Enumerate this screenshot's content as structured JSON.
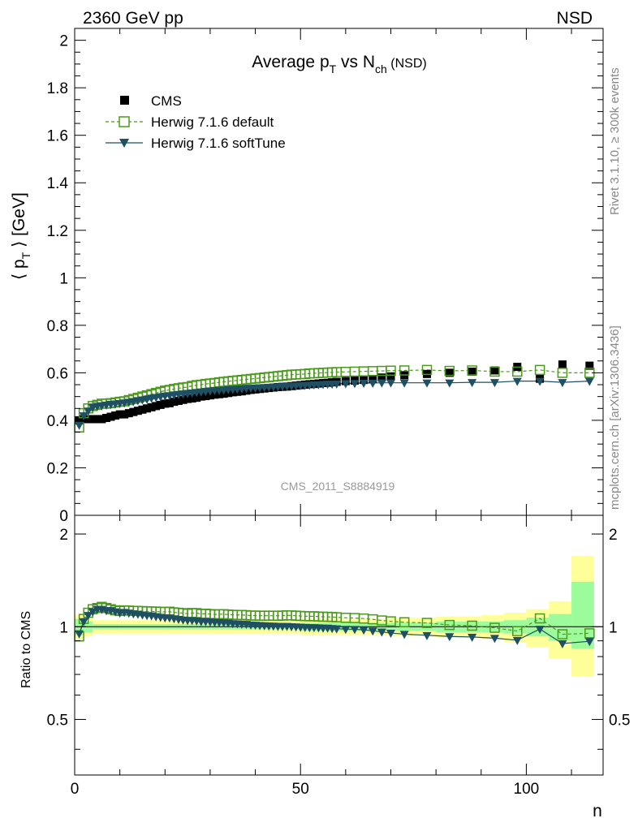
{
  "header": {
    "energy_label": "2360 GeV pp",
    "process_label": "NSD"
  },
  "side_labels": {
    "rivet": "Rivet 3.1.10, ≥ 300k events",
    "mcplots": "mcplots.cern.ch [arXiv:1306.3436]"
  },
  "chart_data": [
    {
      "type": "scatter",
      "title": "Average p_T vs N_ch (NSD)",
      "title_parts": {
        "a": "Average p",
        "a_sub": "T",
        "b": " vs N",
        "b_sub": "ch",
        "c": " (NSD)"
      },
      "ylabel": "⟨ p_T ⟩ [GeV]",
      "ylabel_parts": {
        "a": "⟨ p",
        "sub": "T",
        "b": " ⟩ [GeV]"
      },
      "xlabel": "n",
      "xlim": [
        0,
        117
      ],
      "ylim": [
        0,
        2.05
      ],
      "yticks": [
        "0",
        "0.2",
        "0.4",
        "0.6",
        "0.8",
        "1",
        "1.2",
        "1.4",
        "1.6",
        "1.8",
        "2"
      ],
      "xticks": [
        "0",
        "50",
        "100"
      ],
      "watermark": "CMS_2011_S8884919",
      "legend_position": "top-left",
      "series": [
        {
          "name": "CMS",
          "color": "#000000",
          "marker": "square-filled",
          "x": [
            1,
            2,
            3,
            4,
            5,
            6,
            7,
            8,
            9,
            10,
            11,
            12,
            13,
            14,
            15,
            16,
            17,
            18,
            19,
            20,
            21,
            22,
            23,
            24,
            25,
            26,
            27,
            28,
            29,
            30,
            31,
            32,
            33,
            34,
            35,
            36,
            37,
            38,
            39,
            40,
            41,
            42,
            43,
            44,
            45,
            46,
            47,
            48,
            49,
            50,
            51,
            52,
            53,
            54,
            55,
            56,
            57,
            58,
            60,
            62,
            64,
            66,
            68,
            70,
            73,
            78,
            83,
            88,
            93,
            98,
            103,
            108,
            114
          ],
          "y": [
            0.4,
            0.405,
            0.405,
            0.405,
            0.405,
            0.405,
            0.41,
            0.415,
            0.42,
            0.425,
            0.425,
            0.43,
            0.435,
            0.44,
            0.445,
            0.45,
            0.455,
            0.46,
            0.465,
            0.47,
            0.472,
            0.478,
            0.482,
            0.486,
            0.49,
            0.492,
            0.495,
            0.5,
            0.502,
            0.505,
            0.508,
            0.51,
            0.512,
            0.515,
            0.518,
            0.52,
            0.522,
            0.525,
            0.528,
            0.53,
            0.532,
            0.534,
            0.536,
            0.538,
            0.54,
            0.541,
            0.542,
            0.544,
            0.546,
            0.548,
            0.55,
            0.552,
            0.553,
            0.555,
            0.557,
            0.558,
            0.56,
            0.562,
            0.565,
            0.567,
            0.57,
            0.574,
            0.58,
            0.585,
            0.59,
            0.595,
            0.6,
            0.605,
            0.61,
            0.625,
            0.575,
            0.635,
            0.63
          ]
        },
        {
          "name": "Herwig 7.1.6 default",
          "color": "#4a9a1a",
          "marker": "square-open",
          "line": "dashed",
          "x": [
            1,
            2,
            3,
            4,
            5,
            6,
            7,
            8,
            9,
            10,
            11,
            12,
            13,
            14,
            15,
            16,
            17,
            18,
            19,
            20,
            21,
            22,
            23,
            24,
            25,
            26,
            27,
            28,
            29,
            30,
            31,
            32,
            33,
            34,
            35,
            36,
            37,
            38,
            39,
            40,
            41,
            42,
            43,
            44,
            45,
            46,
            47,
            48,
            49,
            50,
            51,
            52,
            53,
            54,
            55,
            56,
            57,
            58,
            60,
            62,
            64,
            66,
            68,
            70,
            73,
            78,
            83,
            88,
            93,
            98,
            103,
            108,
            114
          ],
          "y": [
            0.37,
            0.43,
            0.45,
            0.46,
            0.465,
            0.47,
            0.47,
            0.472,
            0.475,
            0.478,
            0.48,
            0.485,
            0.49,
            0.495,
            0.5,
            0.505,
            0.51,
            0.515,
            0.52,
            0.525,
            0.528,
            0.532,
            0.535,
            0.538,
            0.54,
            0.545,
            0.548,
            0.55,
            0.553,
            0.555,
            0.557,
            0.56,
            0.562,
            0.564,
            0.566,
            0.568,
            0.57,
            0.572,
            0.574,
            0.576,
            0.578,
            0.58,
            0.582,
            0.584,
            0.586,
            0.588,
            0.59,
            0.592,
            0.593,
            0.594,
            0.595,
            0.597,
            0.598,
            0.599,
            0.6,
            0.601,
            0.602,
            0.603,
            0.604,
            0.605,
            0.606,
            0.607,
            0.608,
            0.609,
            0.61,
            0.612,
            0.608,
            0.61,
            0.605,
            0.605,
            0.612,
            0.6,
            0.6
          ]
        },
        {
          "name": "Herwig 7.1.6 softTune",
          "color": "#1f4f63",
          "marker": "triangle-down-filled",
          "line": "solid",
          "x": [
            1,
            2,
            3,
            4,
            5,
            6,
            7,
            8,
            9,
            10,
            11,
            12,
            13,
            14,
            15,
            16,
            17,
            18,
            19,
            20,
            21,
            22,
            23,
            24,
            25,
            26,
            27,
            28,
            29,
            30,
            31,
            32,
            33,
            34,
            35,
            36,
            37,
            38,
            39,
            40,
            41,
            42,
            43,
            44,
            45,
            46,
            47,
            48,
            49,
            50,
            51,
            52,
            53,
            54,
            55,
            56,
            57,
            58,
            60,
            62,
            64,
            66,
            68,
            70,
            73,
            78,
            83,
            88,
            93,
            98,
            103,
            108,
            114
          ],
          "y": [
            0.38,
            0.42,
            0.44,
            0.455,
            0.46,
            0.462,
            0.465,
            0.468,
            0.47,
            0.472,
            0.474,
            0.477,
            0.48,
            0.484,
            0.487,
            0.49,
            0.494,
            0.497,
            0.5,
            0.503,
            0.505,
            0.508,
            0.51,
            0.512,
            0.514,
            0.516,
            0.518,
            0.52,
            0.522,
            0.524,
            0.526,
            0.527,
            0.528,
            0.53,
            0.531,
            0.532,
            0.533,
            0.535,
            0.536,
            0.537,
            0.538,
            0.539,
            0.54,
            0.541,
            0.542,
            0.543,
            0.544,
            0.545,
            0.546,
            0.547,
            0.548,
            0.549,
            0.55,
            0.551,
            0.552,
            0.553,
            0.553,
            0.554,
            0.555,
            0.556,
            0.557,
            0.557,
            0.558,
            0.558,
            0.558,
            0.558,
            0.558,
            0.56,
            0.56,
            0.565,
            0.565,
            0.56,
            0.565
          ]
        }
      ]
    },
    {
      "type": "scatter",
      "ylabel": "Ratio to CMS",
      "xlabel": "n",
      "xlim": [
        0,
        117
      ],
      "ylim": [
        0.33,
        2.3
      ],
      "yticks": [
        "0.5",
        "1",
        "2"
      ],
      "xticks": [
        "0",
        "50",
        "100"
      ],
      "bands": {
        "x_edges": [
          0,
          2,
          4,
          10,
          20,
          30,
          40,
          50,
          60,
          70,
          80,
          90,
          95,
          100,
          105,
          110,
          115
        ],
        "inner_low": [
          0.94,
          0.96,
          0.98,
          0.98,
          0.98,
          0.98,
          0.98,
          0.97,
          0.97,
          0.97,
          0.96,
          0.96,
          0.95,
          0.93,
          0.9,
          0.85,
          0.49
        ],
        "inner_high": [
          1.06,
          1.04,
          1.02,
          1.02,
          1.02,
          1.02,
          1.02,
          1.03,
          1.03,
          1.03,
          1.04,
          1.04,
          1.05,
          1.07,
          1.1,
          1.4,
          1.58
        ],
        "outer_low": [
          0.91,
          0.93,
          0.95,
          0.95,
          0.95,
          0.95,
          0.95,
          0.94,
          0.94,
          0.93,
          0.92,
          0.91,
          0.89,
          0.86,
          0.79,
          0.69,
          0.35
        ],
        "outer_high": [
          1.09,
          1.07,
          1.05,
          1.05,
          1.05,
          1.05,
          1.05,
          1.06,
          1.06,
          1.07,
          1.08,
          1.09,
          1.11,
          1.14,
          1.21,
          1.7,
          2.0
        ],
        "inner_color": "#9cfc9c",
        "outer_color": "#ffff99"
      },
      "series": [
        {
          "name": "Herwig 7.1.6 default",
          "color": "#4a9a1a",
          "x": [
            1,
            2,
            3,
            4,
            5,
            6,
            7,
            8,
            9,
            10,
            11,
            12,
            13,
            14,
            15,
            16,
            17,
            18,
            19,
            20,
            21,
            22,
            23,
            24,
            25,
            26,
            27,
            28,
            29,
            30,
            31,
            32,
            33,
            34,
            35,
            36,
            37,
            38,
            39,
            40,
            41,
            42,
            43,
            44,
            45,
            46,
            47,
            48,
            49,
            50,
            51,
            52,
            53,
            54,
            55,
            56,
            57,
            58,
            60,
            62,
            64,
            66,
            68,
            70,
            73,
            78,
            83,
            88,
            93,
            98,
            103,
            108,
            114
          ],
          "y": [
            0.93,
            1.06,
            1.11,
            1.14,
            1.15,
            1.16,
            1.15,
            1.14,
            1.13,
            1.125,
            1.13,
            1.128,
            1.126,
            1.125,
            1.124,
            1.122,
            1.121,
            1.12,
            1.118,
            1.117,
            1.119,
            1.113,
            1.11,
            1.107,
            1.102,
            1.108,
            1.107,
            1.1,
            1.102,
            1.099,
            1.096,
            1.098,
            1.098,
            1.095,
            1.093,
            1.092,
            1.092,
            1.09,
            1.087,
            1.087,
            1.086,
            1.086,
            1.086,
            1.086,
            1.085,
            1.087,
            1.089,
            1.088,
            1.086,
            1.084,
            1.082,
            1.081,
            1.081,
            1.079,
            1.077,
            1.077,
            1.075,
            1.073,
            1.069,
            1.067,
            1.063,
            1.057,
            1.048,
            1.041,
            1.034,
            1.029,
            1.013,
            1.008,
            0.992,
            0.968,
            1.064,
            0.945,
            0.952
          ]
        },
        {
          "name": "Herwig 7.1.6 softTune",
          "color": "#1f4f63",
          "x": [
            1,
            2,
            3,
            4,
            5,
            6,
            7,
            8,
            9,
            10,
            11,
            12,
            13,
            14,
            15,
            16,
            17,
            18,
            19,
            20,
            21,
            22,
            23,
            24,
            25,
            26,
            27,
            28,
            29,
            30,
            31,
            32,
            33,
            34,
            35,
            36,
            37,
            38,
            39,
            40,
            41,
            42,
            43,
            44,
            45,
            46,
            47,
            48,
            49,
            50,
            51,
            52,
            53,
            54,
            55,
            56,
            57,
            58,
            60,
            62,
            64,
            66,
            68,
            70,
            73,
            78,
            83,
            88,
            93,
            98,
            103,
            108,
            114
          ],
          "y": [
            0.95,
            1.04,
            1.09,
            1.12,
            1.14,
            1.14,
            1.13,
            1.13,
            1.12,
            1.11,
            1.115,
            1.109,
            1.103,
            1.1,
            1.094,
            1.089,
            1.086,
            1.08,
            1.075,
            1.07,
            1.07,
            1.063,
            1.058,
            1.053,
            1.049,
            1.049,
            1.046,
            1.04,
            1.04,
            1.038,
            1.035,
            1.033,
            1.031,
            1.029,
            1.025,
            1.023,
            1.021,
            1.019,
            1.015,
            1.013,
            1.011,
            1.009,
            1.007,
            1.006,
            1.004,
            1.004,
            1.004,
            1.002,
            1.0,
            0.998,
            0.996,
            0.995,
            0.995,
            0.993,
            0.991,
            0.991,
            0.988,
            0.986,
            0.982,
            0.981,
            0.977,
            0.97,
            0.962,
            0.954,
            0.946,
            0.938,
            0.93,
            0.926,
            0.918,
            0.904,
            0.983,
            0.882,
            0.897
          ]
        }
      ]
    }
  ]
}
